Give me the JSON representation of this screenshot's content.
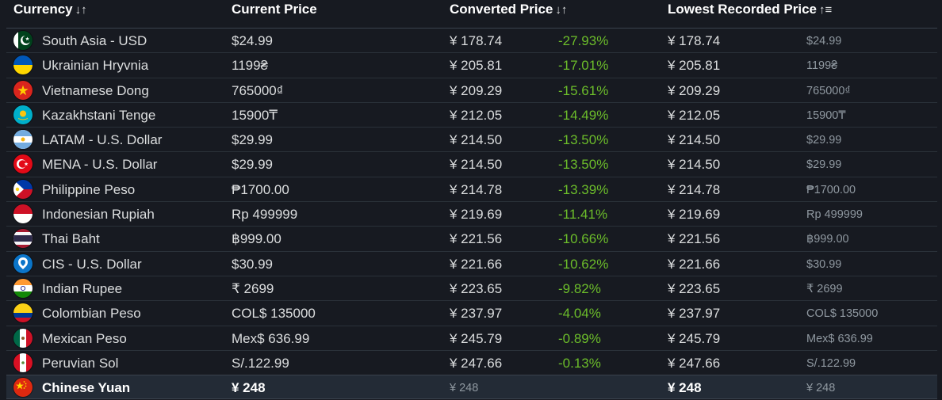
{
  "headers": {
    "currency": "Currency",
    "currency_sort": "↓↑",
    "current_price": "Current Price",
    "converted_price": "Converted Price",
    "converted_sort": "↓↑",
    "lowest_price": "Lowest Recorded Price",
    "lowest_sort": "↑≡"
  },
  "rows": [
    {
      "name": "South Asia - USD",
      "current": "$24.99",
      "converted": "¥ 178.74",
      "diff": "-27.93%",
      "lowest": "¥ 178.74",
      "lowest_orig": "$24.99",
      "flag": "pakistan-flag-icon"
    },
    {
      "name": "Ukrainian Hryvnia",
      "current": "1199₴",
      "converted": "¥ 205.81",
      "diff": "-17.01%",
      "lowest": "¥ 205.81",
      "lowest_orig": "1199₴",
      "flag": "ukraine-flag-icon"
    },
    {
      "name": "Vietnamese Dong",
      "current": "765000₫",
      "converted": "¥ 209.29",
      "diff": "-15.61%",
      "lowest": "¥ 209.29",
      "lowest_orig": "765000₫",
      "flag": "vietnam-flag-icon"
    },
    {
      "name": "Kazakhstani Tenge",
      "current": "15900₸",
      "converted": "¥ 212.05",
      "diff": "-14.49%",
      "lowest": "¥ 212.05",
      "lowest_orig": "15900₸",
      "flag": "kazakhstan-flag-icon"
    },
    {
      "name": "LATAM - U.S. Dollar",
      "current": "$29.99",
      "converted": "¥ 214.50",
      "diff": "-13.50%",
      "lowest": "¥ 214.50",
      "lowest_orig": "$29.99",
      "flag": "argentina-flag-icon"
    },
    {
      "name": "MENA - U.S. Dollar",
      "current": "$29.99",
      "converted": "¥ 214.50",
      "diff": "-13.50%",
      "lowest": "¥ 214.50",
      "lowest_orig": "$29.99",
      "flag": "turkey-flag-icon"
    },
    {
      "name": "Philippine Peso",
      "current": "₱1700.00",
      "converted": "¥ 214.78",
      "diff": "-13.39%",
      "lowest": "¥ 214.78",
      "lowest_orig": "₱1700.00",
      "flag": "philippines-flag-icon"
    },
    {
      "name": "Indonesian Rupiah",
      "current": "Rp 499999",
      "converted": "¥ 219.69",
      "diff": "-11.41%",
      "lowest": "¥ 219.69",
      "lowest_orig": "Rp 499999",
      "flag": "indonesia-flag-icon"
    },
    {
      "name": "Thai Baht",
      "current": "฿999.00",
      "converted": "¥ 221.56",
      "diff": "-10.66%",
      "lowest": "¥ 221.56",
      "lowest_orig": "฿999.00",
      "flag": "thailand-flag-icon"
    },
    {
      "name": "CIS - U.S. Dollar",
      "current": "$30.99",
      "converted": "¥ 221.66",
      "diff": "-10.62%",
      "lowest": "¥ 221.66",
      "lowest_orig": "$30.99",
      "flag": "cis-flag-icon"
    },
    {
      "name": "Indian Rupee",
      "current": "₹ 2699",
      "converted": "¥ 223.65",
      "diff": "-9.82%",
      "lowest": "¥ 223.65",
      "lowest_orig": "₹ 2699",
      "flag": "india-flag-icon"
    },
    {
      "name": "Colombian Peso",
      "current": "COL$ 135000",
      "converted": "¥ 237.97",
      "diff": "-4.04%",
      "lowest": "¥ 237.97",
      "lowest_orig": "COL$ 135000",
      "flag": "colombia-flag-icon"
    },
    {
      "name": "Mexican Peso",
      "current": "Mex$ 636.99",
      "converted": "¥ 245.79",
      "diff": "-0.89%",
      "lowest": "¥ 245.79",
      "lowest_orig": "Mex$ 636.99",
      "flag": "mexico-flag-icon"
    },
    {
      "name": "Peruvian Sol",
      "current": "S/.122.99",
      "converted": "¥ 247.66",
      "diff": "-0.13%",
      "lowest": "¥ 247.66",
      "lowest_orig": "S/.122.99",
      "flag": "peru-flag-icon"
    },
    {
      "name": "Chinese Yuan",
      "current": "¥ 248",
      "converted": "¥ 248",
      "diff": "",
      "lowest": "¥ 248",
      "lowest_orig": "¥ 248",
      "flag": "china-flag-icon",
      "highlight": true
    }
  ],
  "colors": {
    "background": "#171a21",
    "discount_green": "#6cbd2a",
    "muted_text": "#8f98a0",
    "highlight_row": "#232b36"
  }
}
